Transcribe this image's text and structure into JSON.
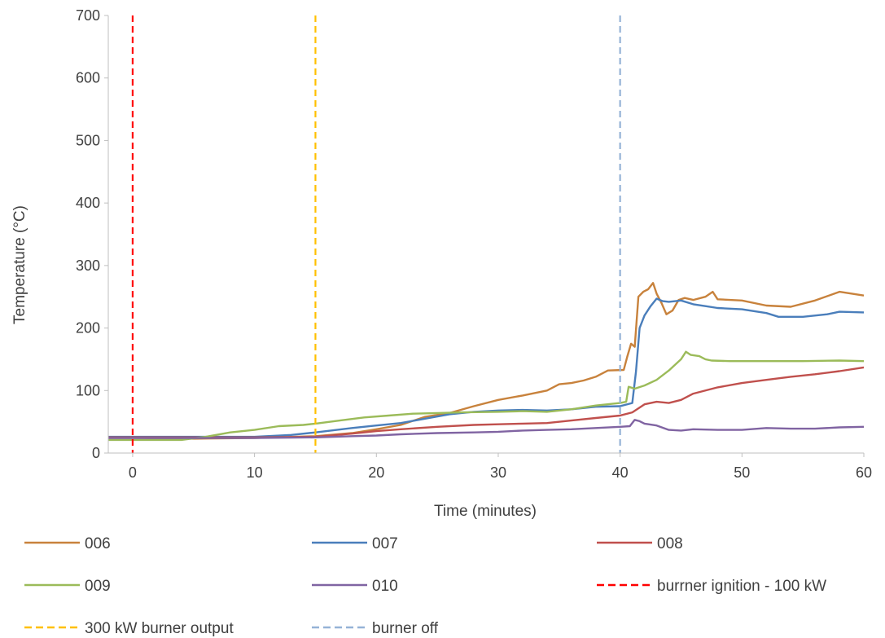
{
  "chart_data": {
    "type": "line",
    "title": "",
    "xlabel": "Time (minutes)",
    "ylabel": "Temperature (°C)",
    "xlim": [
      -2,
      60
    ],
    "ylim": [
      0,
      700
    ],
    "x_ticks": [
      0,
      10,
      20,
      30,
      40,
      50,
      60
    ],
    "y_ticks": [
      0,
      100,
      200,
      300,
      400,
      500,
      600,
      700
    ],
    "grid": false,
    "legend_position": "bottom",
    "series": [
      {
        "name": "006",
        "color": "#c8823c",
        "style": "solid",
        "points": [
          [
            -2,
            24
          ],
          [
            0,
            24
          ],
          [
            5,
            23
          ],
          [
            10,
            24
          ],
          [
            15,
            27
          ],
          [
            18,
            32
          ],
          [
            20,
            38
          ],
          [
            22,
            45
          ],
          [
            24,
            58
          ],
          [
            26,
            64
          ],
          [
            28,
            75
          ],
          [
            30,
            85
          ],
          [
            32,
            92
          ],
          [
            34,
            100
          ],
          [
            35,
            110
          ],
          [
            36,
            112
          ],
          [
            37,
            116
          ],
          [
            38,
            122
          ],
          [
            39,
            132
          ],
          [
            40.3,
            133
          ],
          [
            40.6,
            155
          ],
          [
            40.9,
            175
          ],
          [
            41.2,
            170
          ],
          [
            41.5,
            250
          ],
          [
            41.9,
            258
          ],
          [
            42.3,
            262
          ],
          [
            42.7,
            272
          ],
          [
            43.0,
            255
          ],
          [
            43.4,
            240
          ],
          [
            43.8,
            222
          ],
          [
            44.3,
            228
          ],
          [
            44.8,
            245
          ],
          [
            45.3,
            248
          ],
          [
            46,
            245
          ],
          [
            47,
            250
          ],
          [
            47.6,
            258
          ],
          [
            48,
            246
          ],
          [
            50,
            244
          ],
          [
            52,
            236
          ],
          [
            54,
            234
          ],
          [
            56,
            244
          ],
          [
            58,
            258
          ],
          [
            60,
            252
          ]
        ]
      },
      {
        "name": "007",
        "color": "#4a7ebb",
        "style": "solid",
        "points": [
          [
            -2,
            26
          ],
          [
            0,
            26
          ],
          [
            5,
            26
          ],
          [
            10,
            26
          ],
          [
            13,
            29
          ],
          [
            15,
            33
          ],
          [
            18,
            40
          ],
          [
            20,
            44
          ],
          [
            22,
            48
          ],
          [
            24,
            55
          ],
          [
            26,
            62
          ],
          [
            28,
            66
          ],
          [
            30,
            68
          ],
          [
            32,
            69
          ],
          [
            34,
            68
          ],
          [
            36,
            70
          ],
          [
            38,
            74
          ],
          [
            40,
            75
          ],
          [
            41,
            80
          ],
          [
            41.3,
            130
          ],
          [
            41.6,
            200
          ],
          [
            42,
            220
          ],
          [
            42.5,
            235
          ],
          [
            43,
            247
          ],
          [
            43.5,
            243
          ],
          [
            44,
            242
          ],
          [
            45,
            244
          ],
          [
            46,
            238
          ],
          [
            47,
            235
          ],
          [
            48,
            232
          ],
          [
            50,
            230
          ],
          [
            52,
            224
          ],
          [
            53,
            218
          ],
          [
            55,
            218
          ],
          [
            57,
            222
          ],
          [
            58,
            226
          ],
          [
            60,
            225
          ]
        ]
      },
      {
        "name": "008",
        "color": "#c0504d",
        "style": "solid",
        "points": [
          [
            -2,
            25
          ],
          [
            0,
            25
          ],
          [
            5,
            25
          ],
          [
            10,
            25
          ],
          [
            15,
            26
          ],
          [
            18,
            31
          ],
          [
            20,
            35
          ],
          [
            22,
            38
          ],
          [
            25,
            42
          ],
          [
            28,
            45
          ],
          [
            30,
            46
          ],
          [
            32,
            47
          ],
          [
            34,
            48
          ],
          [
            36,
            52
          ],
          [
            38,
            56
          ],
          [
            40,
            60
          ],
          [
            41,
            65
          ],
          [
            42,
            78
          ],
          [
            43,
            82
          ],
          [
            44,
            80
          ],
          [
            45,
            85
          ],
          [
            46,
            95
          ],
          [
            48,
            105
          ],
          [
            50,
            112
          ],
          [
            52,
            117
          ],
          [
            54,
            122
          ],
          [
            56,
            126
          ],
          [
            58,
            131
          ],
          [
            60,
            137
          ]
        ]
      },
      {
        "name": "009",
        "color": "#9bbb59",
        "style": "solid",
        "points": [
          [
            -2,
            21
          ],
          [
            0,
            21
          ],
          [
            4,
            21
          ],
          [
            6,
            26
          ],
          [
            8,
            33
          ],
          [
            10,
            37
          ],
          [
            12,
            43
          ],
          [
            14,
            45
          ],
          [
            15,
            47
          ],
          [
            17,
            52
          ],
          [
            19,
            57
          ],
          [
            21,
            60
          ],
          [
            23,
            63
          ],
          [
            25,
            64
          ],
          [
            27,
            65
          ],
          [
            30,
            66
          ],
          [
            32,
            67
          ],
          [
            34,
            66
          ],
          [
            36,
            70
          ],
          [
            38,
            76
          ],
          [
            40,
            80
          ],
          [
            40.5,
            82
          ],
          [
            40.7,
            106
          ],
          [
            41.2,
            103
          ],
          [
            42,
            108
          ],
          [
            43,
            117
          ],
          [
            44,
            132
          ],
          [
            45,
            150
          ],
          [
            45.4,
            162
          ],
          [
            45.8,
            157
          ],
          [
            46.5,
            155
          ],
          [
            47,
            150
          ],
          [
            47.5,
            148
          ],
          [
            49,
            147
          ],
          [
            52,
            147
          ],
          [
            55,
            147
          ],
          [
            58,
            148
          ],
          [
            60,
            147
          ]
        ]
      },
      {
        "name": "010",
        "color": "#8064a2",
        "style": "solid",
        "points": [
          [
            -2,
            24
          ],
          [
            0,
            24
          ],
          [
            5,
            24
          ],
          [
            10,
            24
          ],
          [
            15,
            25
          ],
          [
            18,
            27
          ],
          [
            20,
            28
          ],
          [
            22,
            30
          ],
          [
            25,
            32
          ],
          [
            28,
            33
          ],
          [
            30,
            34
          ],
          [
            32,
            36
          ],
          [
            34,
            37
          ],
          [
            36,
            38
          ],
          [
            38,
            40
          ],
          [
            40,
            42
          ],
          [
            40.8,
            43
          ],
          [
            41.2,
            53
          ],
          [
            41.6,
            51
          ],
          [
            42,
            47
          ],
          [
            43,
            44
          ],
          [
            44,
            37
          ],
          [
            45,
            36
          ],
          [
            46,
            38
          ],
          [
            48,
            37
          ],
          [
            50,
            37
          ],
          [
            52,
            40
          ],
          [
            54,
            39
          ],
          [
            56,
            39
          ],
          [
            58,
            41
          ],
          [
            60,
            42
          ]
        ]
      }
    ],
    "vertical_lines": [
      {
        "name": "burrner ignition - 100 kW",
        "x": 0,
        "color": "#ff0000",
        "style": "dashed"
      },
      {
        "name": "300 kW burner output",
        "x": 15,
        "color": "#ffc000",
        "style": "dashed"
      },
      {
        "name": "burner off",
        "x": 40,
        "color": "#95b3d7",
        "style": "dashed"
      }
    ],
    "legend": [
      {
        "label": "006",
        "color": "#c8823c",
        "style": "solid"
      },
      {
        "label": "007",
        "color": "#4a7ebb",
        "style": "solid"
      },
      {
        "label": "008",
        "color": "#c0504d",
        "style": "solid"
      },
      {
        "label": "009",
        "color": "#9bbb59",
        "style": "solid"
      },
      {
        "label": "010",
        "color": "#8064a2",
        "style": "solid"
      },
      {
        "label": "burrner ignition - 100 kW",
        "color": "#ff0000",
        "style": "dashed"
      },
      {
        "label": "300 kW burner output",
        "color": "#ffc000",
        "style": "dashed"
      },
      {
        "label": "burner off",
        "color": "#95b3d7",
        "style": "dashed"
      }
    ]
  }
}
